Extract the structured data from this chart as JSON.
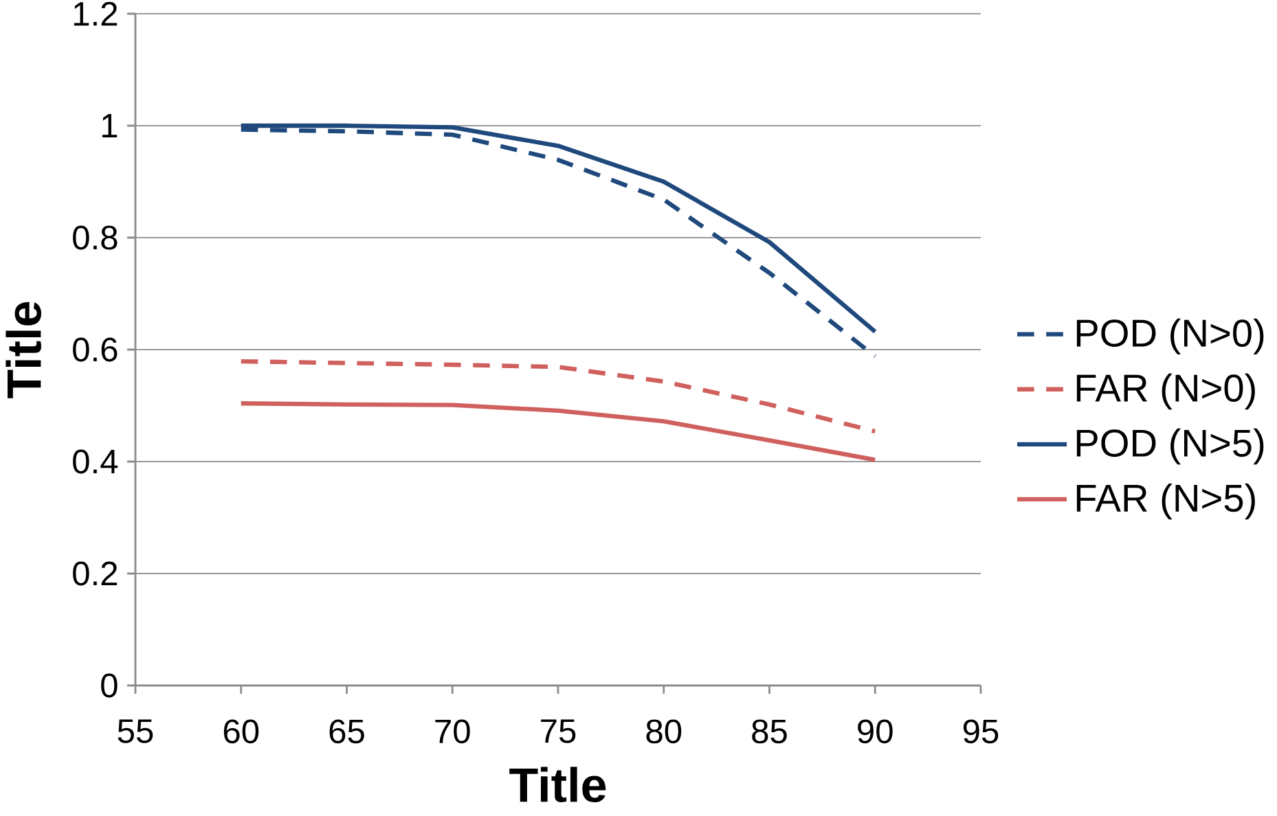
{
  "chart_data": {
    "type": "line",
    "xlabel": "Title",
    "ylabel": "Title",
    "x": [
      60,
      65,
      70,
      75,
      80,
      85,
      90
    ],
    "series": [
      {
        "name": "POD (N>0)",
        "color": "#1f497d",
        "line_style": "dashed",
        "values": [
          0.993,
          0.99,
          0.984,
          0.939,
          0.868,
          0.737,
          0.588
        ]
      },
      {
        "name": "FAR (N>0)",
        "color": "#d0605e",
        "line_style": "dashed",
        "values": [
          0.579,
          0.576,
          0.573,
          0.569,
          0.543,
          0.502,
          0.454
        ]
      },
      {
        "name": "POD (N>5)",
        "color": "#1f497d",
        "line_style": "solid",
        "values": [
          1.0,
          1.0,
          0.997,
          0.964,
          0.9,
          0.792,
          0.632
        ]
      },
      {
        "name": "FAR (N>5)",
        "color": "#d0605e",
        "line_style": "solid",
        "values": [
          0.504,
          0.502,
          0.501,
          0.491,
          0.472,
          0.438,
          0.403
        ]
      }
    ],
    "xlim": [
      55,
      95
    ],
    "xticks": [
      55,
      60,
      65,
      70,
      75,
      80,
      85,
      90,
      95
    ],
    "ylim": [
      0,
      1.2
    ],
    "yticks": [
      0,
      0.2,
      0.4,
      0.6,
      0.8,
      1,
      1.2
    ],
    "grid": "y",
    "legend": "right",
    "marker": "none"
  }
}
